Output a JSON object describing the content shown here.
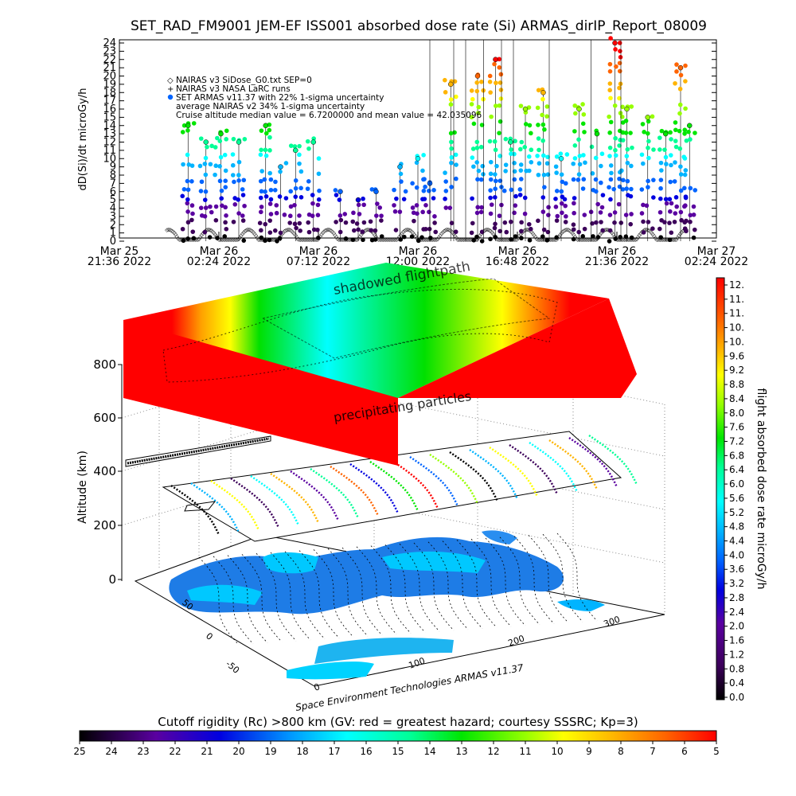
{
  "chart_data": [
    {
      "type": "scatter",
      "title": "SET_RAD_FM9001  JEM-EF ISS001 absorbed dose rate (Si) ARMAS_dirIP_Report_08009",
      "ylabel": "dD(Si)/dt microGy/h",
      "ylim": [
        0,
        24
      ],
      "yticks": [
        "0",
        "1",
        "2",
        "3",
        "4",
        "5",
        "6",
        "7",
        "8",
        "9",
        "10",
        "11",
        "12",
        "13",
        "14",
        "15",
        "16",
        "17",
        "18",
        "19",
        "20",
        "21",
        "22",
        "23",
        "24"
      ],
      "xticks": [
        {
          "line1": "Mar 25",
          "line2": "21:36 2022"
        },
        {
          "line1": "Mar 26",
          "line2": "02:24 2022"
        },
        {
          "line1": "Mar 26",
          "line2": "07:12 2022"
        },
        {
          "line1": "Mar 26",
          "line2": "12:00 2022"
        },
        {
          "line1": "Mar 26",
          "line2": "16:48 2022"
        },
        {
          "line1": "Mar 26",
          "line2": "21:36 2022"
        },
        {
          "line1": "Mar 27",
          "line2": "02:24 2022"
        }
      ],
      "legend": {
        "placement": "top-left",
        "entries": [
          "NAIRAS v3 SiDose_G0.txt SEP=0",
          "NAIRAS v3 NASA LaRC runs",
          "SET ARMAS v11.37 with 22% 1-sigma uncertainty",
          "average NAIRAS v2 34% 1-sigma uncertainty",
          "Cruise altitude median value = 6.7200000 and mean value = 42.035096"
        ]
      },
      "series": [
        {
          "name": "SET ARMAS v11.37 with 22% 1-sigma uncertainty",
          "peaks": [
            {
              "x": 0.115,
              "y": 14
            },
            {
              "x": 0.145,
              "y": 12
            },
            {
              "x": 0.17,
              "y": 13
            },
            {
              "x": 0.2,
              "y": 12
            },
            {
              "x": 0.245,
              "y": 14
            },
            {
              "x": 0.27,
              "y": 9
            },
            {
              "x": 0.295,
              "y": 11
            },
            {
              "x": 0.325,
              "y": 12
            },
            {
              "x": 0.37,
              "y": 6
            },
            {
              "x": 0.4,
              "y": 5
            },
            {
              "x": 0.43,
              "y": 6
            },
            {
              "x": 0.47,
              "y": 9
            },
            {
              "x": 0.5,
              "y": 10
            },
            {
              "x": 0.52,
              "y": 7
            },
            {
              "x": 0.555,
              "y": 19
            },
            {
              "x": 0.6,
              "y": 20
            },
            {
              "x": 0.63,
              "y": 22
            },
            {
              "x": 0.655,
              "y": 12
            },
            {
              "x": 0.68,
              "y": 16
            },
            {
              "x": 0.71,
              "y": 18
            },
            {
              "x": 0.74,
              "y": 10
            },
            {
              "x": 0.77,
              "y": 16
            },
            {
              "x": 0.8,
              "y": 13
            },
            {
              "x": 0.83,
              "y": 24
            },
            {
              "x": 0.85,
              "y": 16
            },
            {
              "x": 0.885,
              "y": 15
            },
            {
              "x": 0.915,
              "y": 13
            },
            {
              "x": 0.94,
              "y": 21
            },
            {
              "x": 0.955,
              "y": 14
            }
          ]
        },
        {
          "name": "NAIRAS v3 SiDose_G0.txt SEP=0",
          "wave": {
            "base": 0.3,
            "amp": 1.2,
            "periods": 30
          }
        }
      ]
    },
    {
      "type": "area",
      "ylabel": "Altitude (km)",
      "yticks": [
        "0",
        "200",
        "400",
        "600",
        "800"
      ],
      "lon_ticks": [
        "0",
        "100",
        "200",
        "300"
      ],
      "lat_ticks": [
        "-50",
        "0",
        "50"
      ],
      "annotations": [
        "shadowed flightpath",
        "precipitating particles"
      ],
      "credit": "Space Environment Technologies ARMAS v11.37"
    },
    {
      "type": "heatmap",
      "title": "flight absorbed dose rate microGy/h",
      "ticks": [
        "0.0",
        "0.4",
        "0.8",
        "1.2",
        "1.6",
        "2.0",
        "2.4",
        "2.8",
        "3.2",
        "3.6",
        "4.0",
        "4.4",
        "4.8",
        "5.2",
        "5.6",
        "6.0",
        "6.4",
        "6.8",
        "7.2",
        "7.6",
        "8.0",
        "8.4",
        "8.8",
        "9.2",
        "9.6",
        "10.",
        "10.",
        "11.",
        "11.",
        "12."
      ]
    },
    {
      "type": "heatmap",
      "title": "Cutoff rigidity (Rc) >800 km (GV: red = greatest hazard; courtesy SSSRC; Kp=3)",
      "ticks": [
        "25",
        "24",
        "23",
        "22",
        "21",
        "20",
        "19",
        "18",
        "17",
        "16",
        "15",
        "14",
        "13",
        "12",
        "11",
        "10",
        "9",
        "8",
        "7",
        "6",
        "5"
      ]
    }
  ],
  "colors": {
    "palette": [
      "#000000",
      "#3c005a",
      "#5a00a0",
      "#0000e0",
      "#0064ff",
      "#00b4ff",
      "#00ffff",
      "#00ff96",
      "#00e600",
      "#96ff00",
      "#ffff00",
      "#ffb400",
      "#ff6400",
      "#ff0000"
    ],
    "heat_sequence": [
      "#ff0000",
      "#ff0000",
      "#ffa000",
      "#ffff00",
      "#00e000",
      "#00ffff",
      "#00e000",
      "#ff8000",
      "#ff0000",
      "#ff0000"
    ]
  }
}
